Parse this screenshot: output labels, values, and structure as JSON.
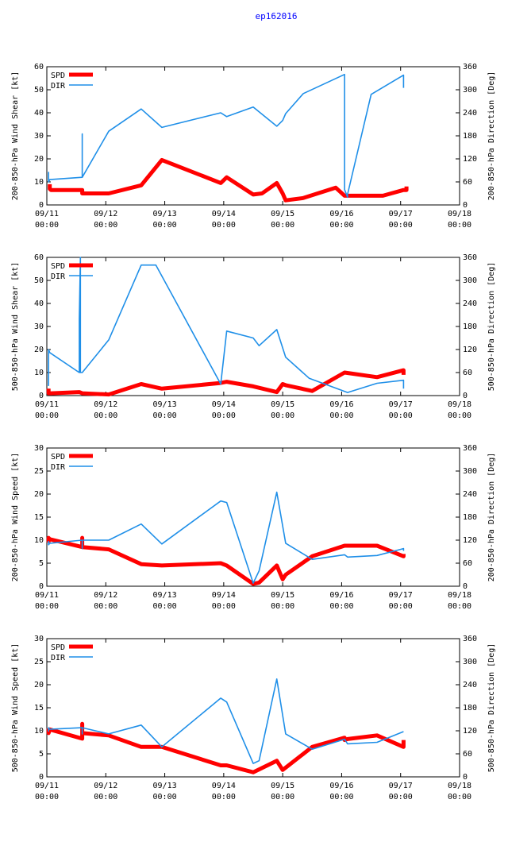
{
  "title": "ep162016",
  "colors": {
    "spd": "#ff0000",
    "dir": "#1f8fe8"
  },
  "chart_data": [
    {
      "type": "line",
      "ylabel_left": "200-850-hPa Wind Shear [kt]",
      "ylabel_right": "200-850-hPa Direction [Deg]",
      "ylim_left": [
        0,
        60
      ],
      "yticks_left": [
        "0",
        "10",
        "20",
        "30",
        "40",
        "50",
        "60"
      ],
      "ylim_right": [
        0,
        360
      ],
      "yticks_right": [
        "0",
        "60",
        "120",
        "180",
        "240",
        "300",
        "360"
      ],
      "xlim": [
        0,
        7
      ],
      "xticks": [
        {
          "date": "09/11",
          "time": "00:00"
        },
        {
          "date": "09/12",
          "time": "00:00"
        },
        {
          "date": "09/13",
          "time": "00:00"
        },
        {
          "date": "09/14",
          "time": "00:00"
        },
        {
          "date": "09/15",
          "time": "00:00"
        },
        {
          "date": "09/16",
          "time": "00:00"
        },
        {
          "date": "09/17",
          "time": "00:00"
        },
        {
          "date": "09/18",
          "time": "00:00"
        }
      ],
      "legend": [
        "SPD",
        "DIR"
      ],
      "series": [
        {
          "name": "SPD",
          "axis": "left",
          "x": [
            0.05,
            0.05,
            0.07,
            0.6,
            0.6,
            1.05,
            1.6,
            1.95,
            2.95,
            3.05,
            3.5,
            3.65,
            3.9,
            4.0,
            4.05,
            4.35,
            4.9,
            5.05,
            5.1,
            5.7,
            6.05,
            6.1,
            6.1
          ],
          "y": [
            9,
            7,
            6.5,
            6.5,
            5,
            5,
            8.5,
            19.5,
            9.5,
            12,
            4.5,
            5,
            9.5,
            5,
            2,
            3,
            7.5,
            4,
            4,
            4,
            6.5,
            6.5,
            8
          ]
        },
        {
          "name": "DIR",
          "axis": "right",
          "x": [
            0.03,
            0.03,
            0.05,
            0.6,
            0.6,
            0.6,
            1.05,
            1.6,
            1.95,
            2.95,
            3.05,
            3.5,
            3.9,
            4.0,
            4.05,
            4.35,
            5.05,
            5.05,
            5.1,
            5.1,
            5.5,
            6.05,
            6.05
          ],
          "y": [
            86,
            60,
            66,
            72,
            185,
            72,
            192,
            250,
            202,
            240,
            230,
            255,
            205,
            220,
            238,
            290,
            340,
            40,
            20,
            28,
            288,
            338,
            305
          ]
        }
      ]
    },
    {
      "type": "line",
      "ylabel_left": "500-850-hPa Wind Shear [kt]",
      "ylabel_right": "500-850-hPa Direction [Deg]",
      "ylim_left": [
        0,
        60
      ],
      "yticks_left": [
        "0",
        "10",
        "20",
        "30",
        "40",
        "50",
        "60"
      ],
      "ylim_right": [
        0,
        360
      ],
      "yticks_right": [
        "0",
        "60",
        "120",
        "180",
        "240",
        "300",
        "360"
      ],
      "xlim": [
        0,
        7
      ],
      "xticks": [
        {
          "date": "09/11",
          "time": "00:00"
        },
        {
          "date": "09/12",
          "time": "00:00"
        },
        {
          "date": "09/13",
          "time": "00:00"
        },
        {
          "date": "09/14",
          "time": "00:00"
        },
        {
          "date": "09/15",
          "time": "00:00"
        },
        {
          "date": "09/16",
          "time": "00:00"
        },
        {
          "date": "09/17",
          "time": "00:00"
        },
        {
          "date": "09/18",
          "time": "00:00"
        }
      ],
      "legend": [
        "SPD",
        "DIR"
      ],
      "series": [
        {
          "name": "SPD",
          "axis": "left",
          "x": [
            0.03,
            0.03,
            0.07,
            0.55,
            0.6,
            1.05,
            1.6,
            1.95,
            2.95,
            3.05,
            3.5,
            3.9,
            4.0,
            4.05,
            4.5,
            5.05,
            5.6,
            6.05,
            6.05
          ],
          "y": [
            3,
            1,
            1,
            1.5,
            1,
            0.5,
            5,
            3,
            5.5,
            6,
            4,
            1.5,
            5,
            4.5,
            2,
            10,
            8,
            11,
            9
          ]
        },
        {
          "name": "DIR",
          "axis": "right",
          "x": [
            0.03,
            0.03,
            0.05,
            0.55,
            0.55,
            0.57,
            0.57,
            0.6,
            1.05,
            1.6,
            1.85,
            2.95,
            3.05,
            3.5,
            3.6,
            3.9,
            4.05,
            4.45,
            5.1,
            5.6,
            6.05,
            6.05
          ],
          "y": [
            25,
            120,
            112,
            60,
            200,
            360,
            60,
            60,
            145,
            340,
            340,
            30,
            168,
            150,
            130,
            172,
            100,
            45,
            8,
            32,
            40,
            18
          ]
        }
      ]
    },
    {
      "type": "line",
      "ylabel_left": "200-850-hPa Wind Speed [kt]",
      "ylabel_right": "200-850-hPa Direction [Deg]",
      "ylim_left": [
        0,
        30
      ],
      "yticks_left": [
        "0",
        "5",
        "10",
        "15",
        "20",
        "25",
        "30"
      ],
      "ylim_right": [
        0,
        360
      ],
      "yticks_right": [
        "0",
        "60",
        "120",
        "180",
        "240",
        "300",
        "360"
      ],
      "xlim": [
        0,
        7
      ],
      "xticks": [
        {
          "date": "09/11",
          "time": "00:00"
        },
        {
          "date": "09/12",
          "time": "00:00"
        },
        {
          "date": "09/13",
          "time": "00:00"
        },
        {
          "date": "09/14",
          "time": "00:00"
        },
        {
          "date": "09/15",
          "time": "00:00"
        },
        {
          "date": "09/16",
          "time": "00:00"
        },
        {
          "date": "09/17",
          "time": "00:00"
        },
        {
          "date": "09/18",
          "time": "00:00"
        }
      ],
      "legend": [
        "SPD",
        "DIR"
      ],
      "series": [
        {
          "name": "SPD",
          "axis": "left",
          "x": [
            0.03,
            0.03,
            0.05,
            0.6,
            0.6,
            0.6,
            1.05,
            1.6,
            1.95,
            2.95,
            3.05,
            3.5,
            3.6,
            3.9,
            4.0,
            4.05,
            4.5,
            5.05,
            5.6,
            6.05,
            6.05
          ],
          "y": [
            9.5,
            10.5,
            10.2,
            8.5,
            10.5,
            8.5,
            8,
            4.8,
            4.5,
            5,
            4.5,
            0.5,
            0.8,
            4.5,
            1.5,
            2.5,
            6.5,
            8.8,
            8.8,
            6.5,
            7
          ]
        },
        {
          "name": "DIR",
          "axis": "right",
          "x": [
            0.03,
            0.03,
            0.05,
            0.6,
            0.6,
            0.6,
            1.05,
            1.6,
            1.95,
            2.95,
            3.05,
            3.5,
            3.6,
            3.9,
            4.05,
            4.5,
            5.05,
            5.1,
            5.6,
            6.05,
            6.05
          ],
          "y": [
            118,
            108,
            112,
            120,
            98,
            120,
            120,
            162,
            110,
            222,
            218,
            8,
            40,
            245,
            112,
            70,
            82,
            76,
            80,
            98,
            92
          ]
        }
      ]
    },
    {
      "type": "line",
      "ylabel_left": "500-850-hPa Wind Speed [kt]",
      "ylabel_right": "500-850-hPa Direction [Deg]",
      "ylim_left": [
        0,
        30
      ],
      "yticks_left": [
        "0",
        "5",
        "10",
        "15",
        "20",
        "25",
        "30"
      ],
      "ylim_right": [
        0,
        360
      ],
      "yticks_right": [
        "0",
        "60",
        "120",
        "180",
        "240",
        "300",
        "360"
      ],
      "xlim": [
        0,
        7
      ],
      "xticks": [
        {
          "date": "09/11",
          "time": "00:00"
        },
        {
          "date": "09/12",
          "time": "00:00"
        },
        {
          "date": "09/13",
          "time": "00:00"
        },
        {
          "date": "09/14",
          "time": "00:00"
        },
        {
          "date": "09/15",
          "time": "00:00"
        },
        {
          "date": "09/16",
          "time": "00:00"
        },
        {
          "date": "09/17",
          "time": "00:00"
        },
        {
          "date": "09/18",
          "time": "00:00"
        }
      ],
      "legend": [
        "SPD",
        "DIR"
      ],
      "series": [
        {
          "name": "SPD",
          "axis": "left",
          "x": [
            0.03,
            0.03,
            0.05,
            0.6,
            0.6,
            0.6,
            1.05,
            1.6,
            1.95,
            2.95,
            3.05,
            3.5,
            3.9,
            4.0,
            4.05,
            4.5,
            5.05,
            5.05,
            5.1,
            5.6,
            6.05,
            6.05
          ],
          "y": [
            10.5,
            9.5,
            10.3,
            8.3,
            11.5,
            9.5,
            9,
            6.5,
            6.5,
            2.5,
            2.5,
            1,
            3.5,
            1.5,
            2,
            6.5,
            8.5,
            8,
            8.2,
            9,
            6.5,
            8
          ]
        },
        {
          "name": "DIR",
          "axis": "right",
          "x": [
            0.03,
            0.03,
            0.05,
            0.6,
            0.6,
            0.6,
            1.05,
            1.6,
            1.95,
            2.95,
            3.05,
            3.5,
            3.6,
            3.9,
            4.05,
            4.5,
            5.05,
            5.1,
            5.6,
            6.05
          ],
          "y": [
            118,
            128,
            124,
            128,
            112,
            128,
            112,
            135,
            78,
            205,
            195,
            35,
            42,
            255,
            112,
            72,
            98,
            86,
            90,
            118
          ]
        }
      ]
    }
  ]
}
